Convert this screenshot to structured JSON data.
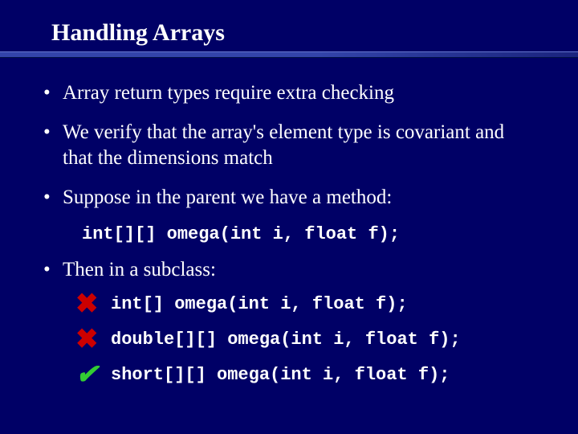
{
  "slide": {
    "title": "Handling Arrays",
    "background_color": "#000066",
    "title_color": "#ffffff",
    "text_color": "#ffffff",
    "underline_gradient_start": "#3344aa",
    "underline_gradient_end": "#1a237e",
    "bullets": [
      {
        "dot": "•",
        "text": "Array return types require extra checking"
      },
      {
        "dot": "•",
        "text": "We verify that the array's element type is covariant and that the dimensions match"
      },
      {
        "dot": "•",
        "text": "Suppose in the parent we have a method:"
      }
    ],
    "parent_method": "int[][] omega(int i, float f);",
    "subclass_intro": {
      "dot": "•",
      "text": "Then in a subclass:"
    },
    "examples": [
      {
        "mark": "✖",
        "mark_kind": "fail",
        "code": "int[] omega(int i, float f);"
      },
      {
        "mark": "✖",
        "mark_kind": "fail",
        "code": "double[][] omega(int i, float f);"
      },
      {
        "mark": "✔",
        "mark_kind": "pass",
        "code": "short[][] omega(int i, float f);"
      }
    ],
    "fonts": {
      "body": "Times New Roman",
      "code": "Courier New",
      "title_size_pt": 30,
      "body_size_pt": 25,
      "code_size_pt": 22
    },
    "mark_colors": {
      "fail": "#cc0000",
      "pass": "#33cc33"
    }
  }
}
